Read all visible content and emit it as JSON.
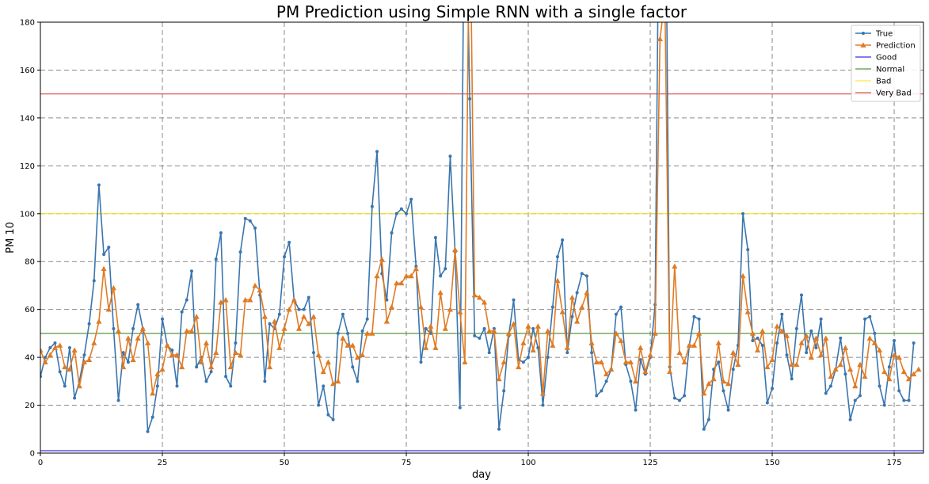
{
  "chart_data": {
    "type": "line",
    "title": "PM Prediction using Simple RNN with a single factor",
    "xlabel": "day",
    "ylabel": "PM 10",
    "xlim": [
      0,
      181
    ],
    "ylim": [
      0,
      180
    ],
    "xticks": [
      0,
      25,
      50,
      75,
      100,
      125,
      150,
      175
    ],
    "yticks": [
      0,
      20,
      40,
      60,
      80,
      100,
      120,
      140,
      160,
      180
    ],
    "grid": true,
    "grid_style": "dashed",
    "legend_position": "top-right",
    "series": [
      {
        "name": "True",
        "color": "#3a75ae",
        "marker": "dot",
        "values": [
          32,
          40,
          44,
          46,
          34,
          28,
          44,
          23,
          30,
          41,
          54,
          72,
          112,
          83,
          86,
          52,
          22,
          42,
          38,
          52,
          62,
          52,
          9,
          15,
          28,
          56,
          45,
          43,
          28,
          59,
          64,
          76,
          36,
          40,
          30,
          34,
          81,
          92,
          32,
          28,
          46,
          84,
          98,
          97,
          94,
          66,
          30,
          54,
          52,
          58,
          82,
          88,
          64,
          60,
          60,
          65,
          42,
          20,
          28,
          16,
          14,
          50,
          58,
          50,
          36,
          30,
          51,
          56,
          103,
          126,
          75,
          64,
          92,
          100,
          102,
          100,
          106,
          78,
          38,
          52,
          50,
          90,
          74,
          77,
          124,
          84,
          19,
          260,
          148,
          49,
          48,
          52,
          42,
          52,
          10,
          26,
          49,
          64,
          39,
          38,
          40,
          52,
          44,
          20,
          40,
          61,
          82,
          89,
          42,
          57,
          67,
          75,
          74,
          42,
          24,
          26,
          30,
          35,
          58,
          61,
          37,
          30,
          18,
          39,
          33,
          40,
          62,
          280,
          280,
          36,
          23,
          22,
          24,
          45,
          57,
          56,
          10,
          14,
          35,
          38,
          26,
          18,
          35,
          45,
          100,
          85,
          47,
          48,
          45,
          21,
          27,
          46,
          58,
          41,
          31,
          52,
          66,
          42,
          51,
          44,
          56,
          25,
          28,
          35,
          48,
          33,
          14,
          22,
          24,
          56,
          57,
          50,
          28,
          20,
          36,
          47,
          26,
          22,
          22,
          46
        ]
      },
      {
        "name": "Prediction",
        "color": "#e07b24",
        "marker": "triangle",
        "values": [
          43,
          38,
          41,
          44,
          45,
          36,
          35,
          43,
          28,
          38,
          39,
          46,
          55,
          77,
          60,
          69,
          51,
          36,
          48,
          39,
          48,
          52,
          46,
          25,
          33,
          35,
          45,
          41,
          41,
          36,
          51,
          51,
          57,
          38,
          46,
          36,
          42,
          63,
          64,
          36,
          42,
          41,
          64,
          64,
          70,
          68,
          57,
          36,
          55,
          44,
          52,
          60,
          64,
          52,
          57,
          54,
          57,
          41,
          34,
          38,
          29,
          30,
          48,
          45,
          45,
          40,
          41,
          50,
          50,
          74,
          81,
          55,
          61,
          71,
          71,
          74,
          74,
          77,
          61,
          44,
          53,
          44,
          67,
          52,
          60,
          85,
          59,
          38,
          240,
          66,
          65,
          63,
          51,
          51,
          31,
          38,
          50,
          54,
          36,
          46,
          53,
          43,
          53,
          25,
          51,
          45,
          72,
          59,
          44,
          65,
          55,
          61,
          67,
          46,
          38,
          38,
          33,
          35,
          50,
          47,
          38,
          38,
          30,
          44,
          34,
          41,
          50,
          173,
          190,
          34,
          78,
          42,
          38,
          45,
          45,
          50,
          25,
          29,
          31,
          46,
          30,
          29,
          42,
          37,
          74,
          59,
          50,
          43,
          51,
          36,
          39,
          53,
          51,
          49,
          37,
          37,
          46,
          49,
          40,
          48,
          41,
          48,
          32,
          35,
          37,
          44,
          35,
          28,
          37,
          32,
          48,
          46,
          43,
          34,
          31,
          41,
          40,
          34,
          31,
          33,
          35
        ]
      }
    ],
    "reference_lines": [
      {
        "name": "Good",
        "value": 1,
        "color": "#0000cc"
      },
      {
        "name": "Normal",
        "value": 50,
        "color": "#2e7d12"
      },
      {
        "name": "Bad",
        "value": 100,
        "color": "#f0e418"
      },
      {
        "name": "Very Bad",
        "value": 150,
        "color": "#cc2b2b"
      }
    ]
  }
}
